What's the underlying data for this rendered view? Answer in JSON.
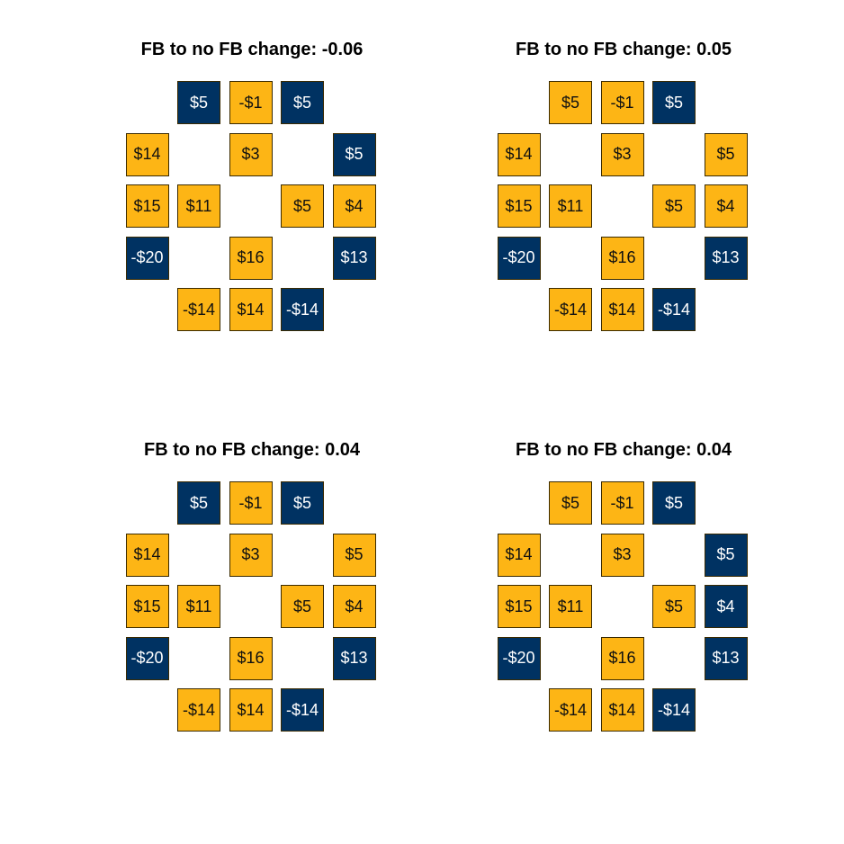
{
  "colors": {
    "gold": "#FDB515",
    "navy": "#003262",
    "gold_text": "#111111",
    "navy_text": "#ffffff"
  },
  "panels": [
    {
      "title": "FB to no FB change: -0.06",
      "tiles": [
        {
          "row": 0,
          "col": 1,
          "label": "$5",
          "color": "navy"
        },
        {
          "row": 0,
          "col": 2,
          "label": "-$1",
          "color": "gold"
        },
        {
          "row": 0,
          "col": 3,
          "label": "$5",
          "color": "navy"
        },
        {
          "row": 1,
          "col": 0,
          "label": "$14",
          "color": "gold"
        },
        {
          "row": 1,
          "col": 2,
          "label": "$3",
          "color": "gold"
        },
        {
          "row": 1,
          "col": 4,
          "label": "$5",
          "color": "navy"
        },
        {
          "row": 2,
          "col": 0,
          "label": "$15",
          "color": "gold"
        },
        {
          "row": 2,
          "col": 1,
          "label": "$11",
          "color": "gold"
        },
        {
          "row": 2,
          "col": 3,
          "label": "$5",
          "color": "gold"
        },
        {
          "row": 2,
          "col": 4,
          "label": "$4",
          "color": "gold"
        },
        {
          "row": 3,
          "col": 0,
          "label": "-$20",
          "color": "navy"
        },
        {
          "row": 3,
          "col": 2,
          "label": "$16",
          "color": "gold"
        },
        {
          "row": 3,
          "col": 4,
          "label": "$13",
          "color": "navy"
        },
        {
          "row": 4,
          "col": 1,
          "label": "-$14",
          "color": "gold"
        },
        {
          "row": 4,
          "col": 2,
          "label": "$14",
          "color": "gold"
        },
        {
          "row": 4,
          "col": 3,
          "label": "-$14",
          "color": "navy"
        }
      ]
    },
    {
      "title": "FB to no FB change: 0.05",
      "tiles": [
        {
          "row": 0,
          "col": 1,
          "label": "$5",
          "color": "gold"
        },
        {
          "row": 0,
          "col": 2,
          "label": "-$1",
          "color": "gold"
        },
        {
          "row": 0,
          "col": 3,
          "label": "$5",
          "color": "navy"
        },
        {
          "row": 1,
          "col": 0,
          "label": "$14",
          "color": "gold"
        },
        {
          "row": 1,
          "col": 2,
          "label": "$3",
          "color": "gold"
        },
        {
          "row": 1,
          "col": 4,
          "label": "$5",
          "color": "gold"
        },
        {
          "row": 2,
          "col": 0,
          "label": "$15",
          "color": "gold"
        },
        {
          "row": 2,
          "col": 1,
          "label": "$11",
          "color": "gold"
        },
        {
          "row": 2,
          "col": 3,
          "label": "$5",
          "color": "gold"
        },
        {
          "row": 2,
          "col": 4,
          "label": "$4",
          "color": "gold"
        },
        {
          "row": 3,
          "col": 0,
          "label": "-$20",
          "color": "navy"
        },
        {
          "row": 3,
          "col": 2,
          "label": "$16",
          "color": "gold"
        },
        {
          "row": 3,
          "col": 4,
          "label": "$13",
          "color": "navy"
        },
        {
          "row": 4,
          "col": 1,
          "label": "-$14",
          "color": "gold"
        },
        {
          "row": 4,
          "col": 2,
          "label": "$14",
          "color": "gold"
        },
        {
          "row": 4,
          "col": 3,
          "label": "-$14",
          "color": "navy"
        }
      ]
    },
    {
      "title": "FB to no FB change: 0.04",
      "tiles": [
        {
          "row": 0,
          "col": 1,
          "label": "$5",
          "color": "navy"
        },
        {
          "row": 0,
          "col": 2,
          "label": "-$1",
          "color": "gold"
        },
        {
          "row": 0,
          "col": 3,
          "label": "$5",
          "color": "navy"
        },
        {
          "row": 1,
          "col": 0,
          "label": "$14",
          "color": "gold"
        },
        {
          "row": 1,
          "col": 2,
          "label": "$3",
          "color": "gold"
        },
        {
          "row": 1,
          "col": 4,
          "label": "$5",
          "color": "gold"
        },
        {
          "row": 2,
          "col": 0,
          "label": "$15",
          "color": "gold"
        },
        {
          "row": 2,
          "col": 1,
          "label": "$11",
          "color": "gold"
        },
        {
          "row": 2,
          "col": 3,
          "label": "$5",
          "color": "gold"
        },
        {
          "row": 2,
          "col": 4,
          "label": "$4",
          "color": "gold"
        },
        {
          "row": 3,
          "col": 0,
          "label": "-$20",
          "color": "navy"
        },
        {
          "row": 3,
          "col": 2,
          "label": "$16",
          "color": "gold"
        },
        {
          "row": 3,
          "col": 4,
          "label": "$13",
          "color": "navy"
        },
        {
          "row": 4,
          "col": 1,
          "label": "-$14",
          "color": "gold"
        },
        {
          "row": 4,
          "col": 2,
          "label": "$14",
          "color": "gold"
        },
        {
          "row": 4,
          "col": 3,
          "label": "-$14",
          "color": "navy"
        }
      ]
    },
    {
      "title": "FB to no FB change: 0.04",
      "tiles": [
        {
          "row": 0,
          "col": 1,
          "label": "$5",
          "color": "gold"
        },
        {
          "row": 0,
          "col": 2,
          "label": "-$1",
          "color": "gold"
        },
        {
          "row": 0,
          "col": 3,
          "label": "$5",
          "color": "navy"
        },
        {
          "row": 1,
          "col": 0,
          "label": "$14",
          "color": "gold"
        },
        {
          "row": 1,
          "col": 2,
          "label": "$3",
          "color": "gold"
        },
        {
          "row": 1,
          "col": 4,
          "label": "$5",
          "color": "navy"
        },
        {
          "row": 2,
          "col": 0,
          "label": "$15",
          "color": "gold"
        },
        {
          "row": 2,
          "col": 1,
          "label": "$11",
          "color": "gold"
        },
        {
          "row": 2,
          "col": 3,
          "label": "$5",
          "color": "gold"
        },
        {
          "row": 2,
          "col": 4,
          "label": "$4",
          "color": "navy"
        },
        {
          "row": 3,
          "col": 0,
          "label": "-$20",
          "color": "navy"
        },
        {
          "row": 3,
          "col": 2,
          "label": "$16",
          "color": "gold"
        },
        {
          "row": 3,
          "col": 4,
          "label": "$13",
          "color": "navy"
        },
        {
          "row": 4,
          "col": 1,
          "label": "-$14",
          "color": "gold"
        },
        {
          "row": 4,
          "col": 2,
          "label": "$14",
          "color": "gold"
        },
        {
          "row": 4,
          "col": 3,
          "label": "-$14",
          "color": "navy"
        }
      ]
    }
  ]
}
